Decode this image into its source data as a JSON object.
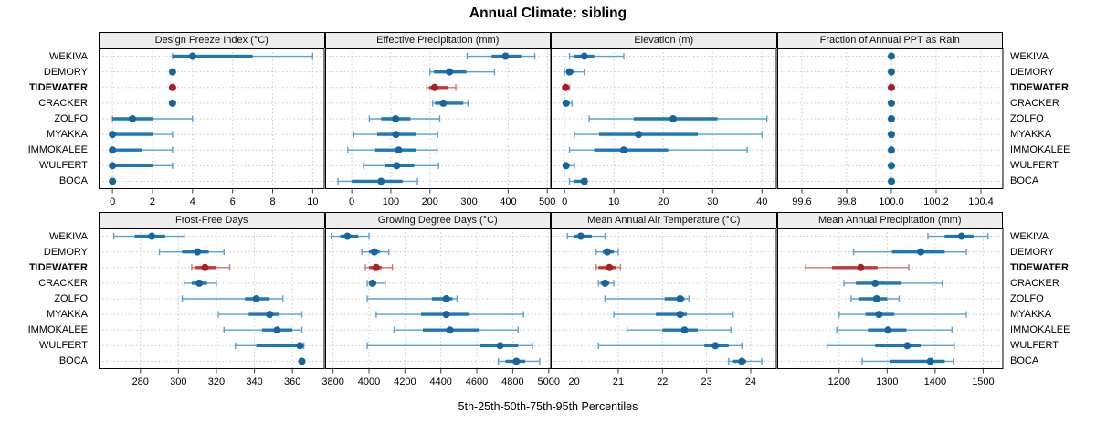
{
  "title": "Annual Climate: sibling",
  "caption": "5th-25th-50th-75th-95th Percentiles",
  "sites": [
    "WEKIVA",
    "DEMORY",
    "TIDEWATER",
    "CRACKER",
    "ZOLFO",
    "MYAKKA",
    "IMMOKALEE",
    "WULFERT",
    "BOCA"
  ],
  "highlight_site": "TIDEWATER",
  "colors": {
    "normal_dot": "#15659f",
    "normal_box": "#1f77b4",
    "normal_whisker": "#5d9fd0",
    "highlight_dot": "#a91e24",
    "highlight_box": "#c13637",
    "highlight_whisker": "#d4716f",
    "header_bg": "#ededed",
    "panel_border": "#000000",
    "grid": "#c9c9c9",
    "tick": "#404040"
  },
  "chart_data": {
    "type": "trellis-percentile-dotplot",
    "percentile_levels": [
      "5th",
      "25th",
      "50th",
      "75th",
      "95th"
    ],
    "legend_position": "bottom-caption",
    "grid": true,
    "panels": [
      {
        "title": "Design Freeze Index (°C)",
        "row": 0,
        "col": 0,
        "xlim": [
          -0.69,
          10.6
        ],
        "tick_values": [
          0,
          2,
          4,
          6,
          8,
          10
        ],
        "tick_labels": [
          "0",
          "2",
          "4",
          "6",
          "8",
          "10"
        ],
        "values": [
          [
            3,
            3,
            4,
            7,
            10
          ],
          [
            3,
            3,
            3,
            3,
            3
          ],
          [
            3,
            3,
            3,
            3,
            3
          ],
          [
            3,
            3,
            3,
            3,
            3
          ],
          [
            0,
            0,
            1,
            2,
            4
          ],
          [
            0,
            0,
            0,
            2,
            3
          ],
          [
            0,
            0,
            0,
            1.5,
            3
          ],
          [
            0,
            0,
            0,
            2,
            3
          ],
          [
            0,
            0,
            0,
            0,
            0
          ]
        ]
      },
      {
        "title": "Effective Precipitation (mm)",
        "row": 0,
        "col": 1,
        "xlim": [
          -68,
          510
        ],
        "tick_values": [
          0,
          100,
          200,
          300,
          400,
          500
        ],
        "tick_labels": [
          "0",
          "100",
          "200",
          "300",
          "400",
          "500"
        ],
        "values": [
          [
            295,
            358,
            393,
            433,
            468
          ],
          [
            200,
            210,
            250,
            293,
            365
          ],
          [
            192,
            198,
            212,
            245,
            266
          ],
          [
            207,
            213,
            234,
            285,
            297
          ],
          [
            45,
            75,
            112,
            150,
            225
          ],
          [
            5,
            65,
            113,
            165,
            220
          ],
          [
            -10,
            60,
            120,
            165,
            218
          ],
          [
            30,
            85,
            115,
            160,
            222
          ],
          [
            -35,
            0,
            75,
            130,
            168
          ]
        ]
      },
      {
        "title": "Elevation (m)",
        "row": 0,
        "col": 2,
        "xlim": [
          -2.8,
          43
        ],
        "tick_values": [
          0,
          10,
          20,
          30,
          40
        ],
        "tick_labels": [
          "0",
          "10",
          "20",
          "30",
          "40"
        ],
        "values": [
          [
            1,
            2,
            4,
            6,
            12
          ],
          [
            0,
            0.5,
            1,
            2,
            4
          ],
          [
            0,
            0,
            0.2,
            0.5,
            1
          ],
          [
            0,
            0,
            0.3,
            1,
            1.5
          ],
          [
            5,
            14,
            22,
            31,
            41
          ],
          [
            2,
            7,
            15,
            27,
            40
          ],
          [
            1,
            6,
            12,
            21,
            37
          ],
          [
            0,
            0,
            0.3,
            1,
            2
          ],
          [
            1,
            2,
            4,
            4,
            4.5
          ]
        ]
      },
      {
        "title": "Fraction of Annual PPT as Rain",
        "row": 0,
        "col": 3,
        "xlim": [
          99.49,
          100.5
        ],
        "tick_values": [
          99.6,
          99.8,
          100.0,
          100.2,
          100.4
        ],
        "tick_labels": [
          "99.6",
          "99.8",
          "100.0",
          "100.2",
          "100.4"
        ],
        "values": [
          [
            100,
            100,
            100,
            100,
            100
          ],
          [
            100,
            100,
            100,
            100,
            100
          ],
          [
            100,
            100,
            100,
            100,
            100
          ],
          [
            100,
            100,
            100,
            100,
            100
          ],
          [
            100,
            100,
            100,
            100,
            100
          ],
          [
            100,
            100,
            100,
            100,
            100
          ],
          [
            100,
            100,
            100,
            100,
            100
          ],
          [
            100,
            100,
            100,
            100,
            100
          ],
          [
            100,
            100,
            100,
            100,
            100
          ]
        ]
      },
      {
        "title": "Frost-Free Days",
        "row": 1,
        "col": 0,
        "xlim": [
          258,
          377
        ],
        "tick_values": [
          280,
          300,
          320,
          340,
          360
        ],
        "tick_labels": [
          "280",
          "300",
          "320",
          "340",
          "360"
        ],
        "values": [
          [
            266,
            277,
            286,
            293,
            303
          ],
          [
            290,
            302,
            310,
            316,
            324
          ],
          [
            307,
            309,
            314,
            320,
            327
          ],
          [
            303,
            307,
            311,
            315,
            320
          ],
          [
            302,
            335,
            341,
            348,
            355
          ],
          [
            321,
            337,
            348,
            353,
            365
          ],
          [
            324,
            344,
            352,
            360,
            365
          ],
          [
            330,
            341,
            364,
            365,
            366
          ],
          [
            365,
            365,
            365,
            365,
            365
          ]
        ]
      },
      {
        "title": "Growing Degree Days (°C)",
        "row": 1,
        "col": 1,
        "xlim": [
          3756,
          5014
        ],
        "tick_values": [
          3800,
          4000,
          4200,
          4400,
          4600,
          4800,
          5000
        ],
        "tick_labels": [
          "3800",
          "4000",
          "4200",
          "4400",
          "4600",
          "4800",
          "5000"
        ],
        "values": [
          [
            3790,
            3840,
            3880,
            3940,
            4000
          ],
          [
            3960,
            4000,
            4030,
            4060,
            4110
          ],
          [
            3980,
            4000,
            4040,
            4070,
            4130
          ],
          [
            3990,
            4000,
            4020,
            4040,
            4090
          ],
          [
            3990,
            4350,
            4430,
            4465,
            4490
          ],
          [
            4040,
            4290,
            4430,
            4560,
            4860
          ],
          [
            4140,
            4300,
            4450,
            4610,
            4830
          ],
          [
            3990,
            4620,
            4730,
            4830,
            4910
          ],
          [
            4720,
            4760,
            4820,
            4870,
            4950
          ]
        ]
      },
      {
        "title": "Mean Annual Air Temperature (°C)",
        "row": 1,
        "col": 2,
        "xlim": [
          19.47,
          24.59
        ],
        "tick_values": [
          20,
          21,
          22,
          23,
          24
        ],
        "tick_labels": [
          "20",
          "21",
          "22",
          "23",
          "24"
        ],
        "values": [
          [
            19.85,
            20.0,
            20.15,
            20.4,
            20.7
          ],
          [
            20.5,
            20.65,
            20.75,
            20.9,
            21.0
          ],
          [
            20.5,
            20.55,
            20.8,
            20.95,
            21.05
          ],
          [
            20.55,
            20.6,
            20.7,
            20.8,
            20.9
          ],
          [
            20.7,
            22.05,
            22.4,
            22.5,
            22.6
          ],
          [
            20.9,
            21.85,
            22.4,
            22.55,
            23.6
          ],
          [
            21.2,
            22.0,
            22.5,
            22.8,
            23.55
          ],
          [
            20.55,
            22.95,
            23.2,
            23.5,
            23.8
          ],
          [
            23.5,
            23.6,
            23.8,
            23.9,
            24.25
          ]
        ]
      },
      {
        "title": "Mean Annual Precipitation (mm)",
        "row": 1,
        "col": 3,
        "xlim": [
          1071,
          1542
        ],
        "tick_values": [
          1200,
          1300,
          1400,
          1500
        ],
        "tick_labels": [
          "1200",
          "1300",
          "1400",
          "1500"
        ],
        "values": [
          [
            1385,
            1420,
            1455,
            1480,
            1510
          ],
          [
            1230,
            1310,
            1370,
            1420,
            1465
          ],
          [
            1130,
            1185,
            1245,
            1280,
            1345
          ],
          [
            1210,
            1235,
            1275,
            1330,
            1415
          ],
          [
            1225,
            1240,
            1278,
            1300,
            1325
          ],
          [
            1200,
            1255,
            1283,
            1315,
            1465
          ],
          [
            1195,
            1260,
            1302,
            1340,
            1435
          ],
          [
            1175,
            1275,
            1342,
            1370,
            1440
          ],
          [
            1248,
            1305,
            1390,
            1420,
            1438
          ]
        ]
      }
    ]
  }
}
